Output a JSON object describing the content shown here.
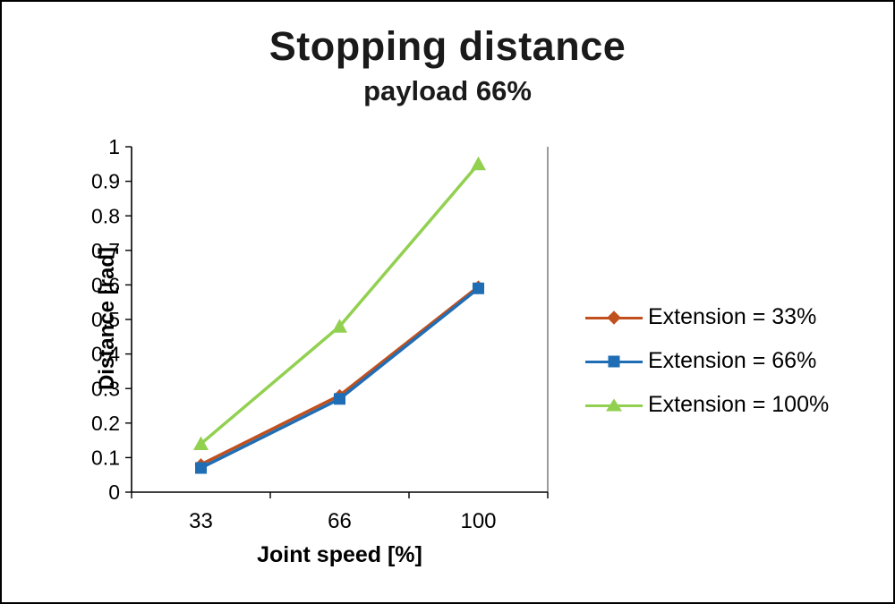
{
  "chart_data": {
    "type": "line",
    "title": "Stopping distance",
    "subtitle": "payload 66%",
    "xlabel": "Joint speed [%]",
    "ylabel": "Distance [rad]",
    "categories": [
      "33",
      "66",
      "100"
    ],
    "series": [
      {
        "name": "Extension = 33%",
        "marker": "diamond",
        "color": "#C0501E",
        "values": [
          0.08,
          0.28,
          0.595
        ]
      },
      {
        "name": "Extension = 66%",
        "marker": "square",
        "color": "#1F6EB5",
        "values": [
          0.07,
          0.27,
          0.59
        ]
      },
      {
        "name": "Extension = 100%",
        "marker": "triangle",
        "color": "#92D050",
        "values": [
          0.14,
          0.48,
          0.95
        ]
      }
    ],
    "ylim": [
      0,
      1
    ],
    "yticks": [
      0,
      0.1,
      0.2,
      0.3,
      0.4,
      0.5,
      0.6,
      0.7,
      0.8,
      0.9,
      1
    ],
    "grid": false,
    "legend_position": "right",
    "colors": {
      "axis": "#000000",
      "plot_right_border": "#595959",
      "title_text": "#1a1a1a"
    }
  }
}
